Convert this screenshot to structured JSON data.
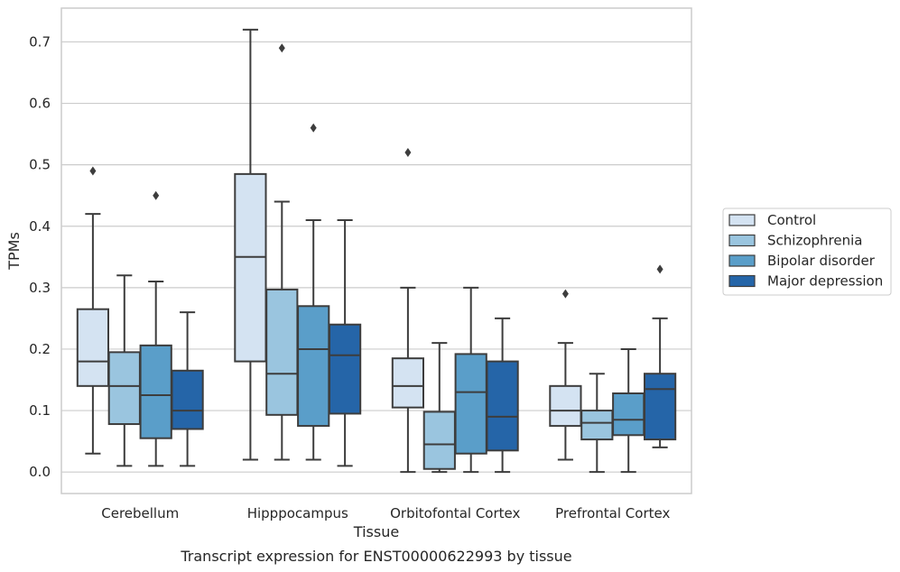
{
  "caption": "Transcript expression for ENST00000622993 by tissue",
  "chart_data": {
    "type": "boxplot",
    "xlabel": "Tissue",
    "ylabel": "TPMs",
    "ylim": [
      -0.035,
      0.755
    ],
    "yticks": [
      "0.0",
      "0.1",
      "0.2",
      "0.3",
      "0.4",
      "0.5",
      "0.6",
      "0.7"
    ],
    "yticks_values": [
      0,
      0.1,
      0.2,
      0.3,
      0.4,
      0.5,
      0.6,
      0.7
    ],
    "grid": true,
    "legend_position": "right-outside",
    "categories": [
      "Cerebellum",
      "Hipppocampus",
      "Orbitofontal Cortex",
      "Prefrontal Cortex"
    ],
    "series": [
      {
        "name": "Control",
        "color": "#d4e3f2",
        "boxes": [
          {
            "whislo": 0.03,
            "q1": 0.14,
            "med": 0.18,
            "q3": 0.265,
            "whishi": 0.42,
            "fliers": [
              0.49
            ]
          },
          {
            "whislo": 0.02,
            "q1": 0.18,
            "med": 0.35,
            "q3": 0.485,
            "whishi": 0.72,
            "fliers": []
          },
          {
            "whislo": 0.0,
            "q1": 0.105,
            "med": 0.14,
            "q3": 0.185,
            "whishi": 0.3,
            "fliers": [
              0.52
            ]
          },
          {
            "whislo": 0.02,
            "q1": 0.075,
            "med": 0.1,
            "q3": 0.14,
            "whishi": 0.21,
            "fliers": [
              0.29
            ]
          }
        ]
      },
      {
        "name": "Schizophrenia",
        "color": "#9ac5df",
        "boxes": [
          {
            "whislo": 0.01,
            "q1": 0.078,
            "med": 0.14,
            "q3": 0.195,
            "whishi": 0.32,
            "fliers": []
          },
          {
            "whislo": 0.02,
            "q1": 0.093,
            "med": 0.16,
            "q3": 0.297,
            "whishi": 0.44,
            "fliers": [
              0.69
            ]
          },
          {
            "whislo": 0.0,
            "q1": 0.005,
            "med": 0.045,
            "q3": 0.098,
            "whishi": 0.21,
            "fliers": []
          },
          {
            "whislo": 0.0,
            "q1": 0.053,
            "med": 0.08,
            "q3": 0.1,
            "whishi": 0.16,
            "fliers": []
          }
        ]
      },
      {
        "name": "Bipolar disorder",
        "color": "#5a9ec9",
        "boxes": [
          {
            "whislo": 0.01,
            "q1": 0.055,
            "med": 0.125,
            "q3": 0.206,
            "whishi": 0.31,
            "fliers": [
              0.45
            ]
          },
          {
            "whislo": 0.02,
            "q1": 0.075,
            "med": 0.2,
            "q3": 0.27,
            "whishi": 0.41,
            "fliers": [
              0.56
            ]
          },
          {
            "whislo": 0.0,
            "q1": 0.03,
            "med": 0.13,
            "q3": 0.192,
            "whishi": 0.3,
            "fliers": []
          },
          {
            "whislo": 0.0,
            "q1": 0.06,
            "med": 0.085,
            "q3": 0.128,
            "whishi": 0.2,
            "fliers": []
          }
        ]
      },
      {
        "name": "Major depression",
        "color": "#2565a8",
        "boxes": [
          {
            "whislo": 0.01,
            "q1": 0.07,
            "med": 0.1,
            "q3": 0.165,
            "whishi": 0.26,
            "fliers": []
          },
          {
            "whislo": 0.01,
            "q1": 0.095,
            "med": 0.19,
            "q3": 0.24,
            "whishi": 0.41,
            "fliers": []
          },
          {
            "whislo": 0.0,
            "q1": 0.035,
            "med": 0.09,
            "q3": 0.18,
            "whishi": 0.25,
            "fliers": []
          },
          {
            "whislo": 0.04,
            "q1": 0.053,
            "med": 0.135,
            "q3": 0.16,
            "whishi": 0.25,
            "fliers": [
              0.33
            ]
          }
        ]
      }
    ]
  }
}
